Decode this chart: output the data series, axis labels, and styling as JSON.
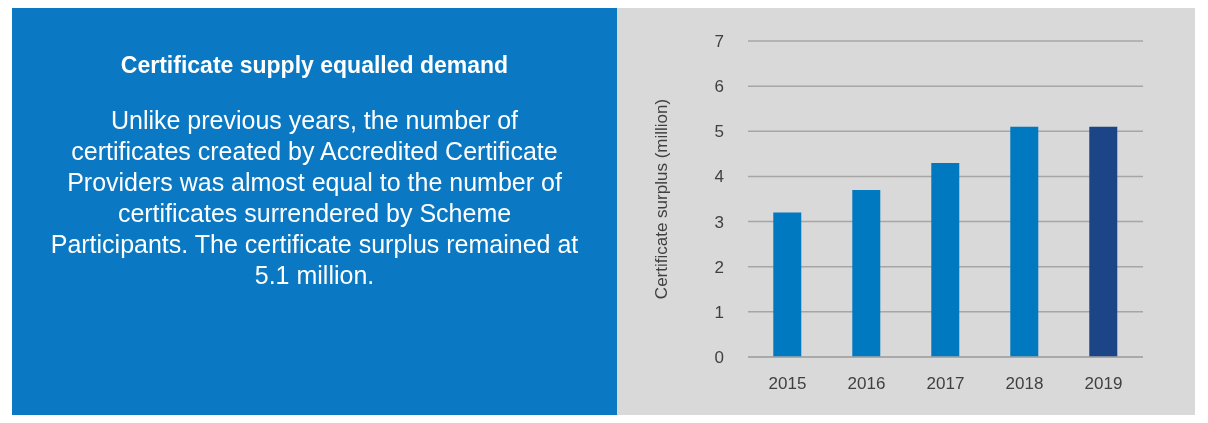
{
  "chart_data": {
    "type": "bar",
    "title": "Certificate supply equalled demand",
    "annotations": [
      "Unlike previous years, the number of certificates created by Accredited Certificate Providers was almost equal to the number of certificates surrendered by Scheme Participants. The certificate surplus remained at 5.1 million."
    ],
    "ylabel": "Certificate surplus (million)",
    "categories": [
      "2015",
      "2016",
      "2017",
      "2018",
      "2019"
    ],
    "values": [
      3.2,
      3.7,
      4.3,
      5.1,
      5.1
    ],
    "colors": [
      "#0079c1",
      "#0079c1",
      "#0079c1",
      "#0079c1",
      "#1b4586"
    ],
    "ylim": [
      0,
      7
    ],
    "yticks": [
      0,
      1,
      2,
      3,
      4,
      5,
      6,
      7
    ],
    "grid": "y"
  }
}
